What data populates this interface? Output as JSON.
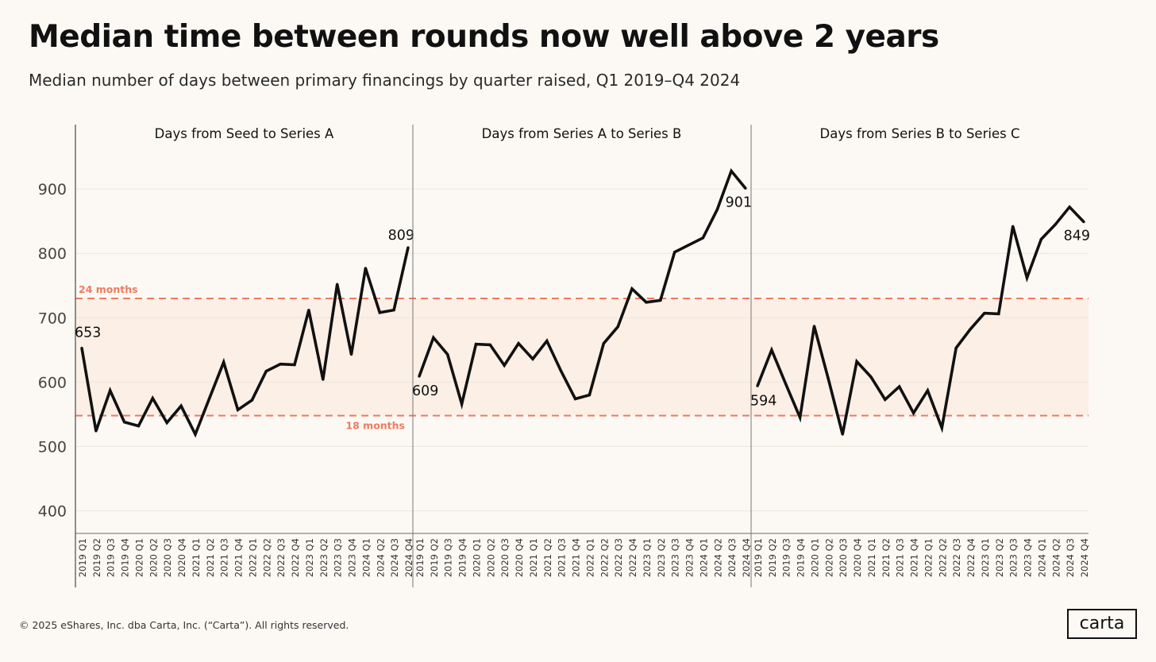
{
  "title": "Median time between rounds now well above 2 years",
  "subtitle": "Median number of days between primary financings by quarter raised, Q1 2019–Q4 2024",
  "footer": "© 2025 eShares, Inc. dba Carta, Inc. (“Carta”). All rights reserved.",
  "logo": "carta",
  "colors": {
    "line": "#111111",
    "reference": "#ef7a5f",
    "band": "#fcefe6",
    "background": "#fcf9f4"
  },
  "chart_data": {
    "type": "line",
    "y_ticks": [
      400,
      500,
      600,
      700,
      800,
      900
    ],
    "ylim": [
      365,
      1000
    ],
    "grid": true,
    "categories": [
      "2019 Q1",
      "2019 Q2",
      "2019 Q3",
      "2019 Q4",
      "2020 Q1",
      "2020 Q2",
      "2020 Q3",
      "2020 Q4",
      "2021 Q1",
      "2021 Q2",
      "2021 Q3",
      "2021 Q4",
      "2022 Q1",
      "2022 Q2",
      "2022 Q3",
      "2022 Q4",
      "2023 Q1",
      "2023 Q2",
      "2023 Q3",
      "2023 Q4",
      "2024 Q1",
      "2024 Q2",
      "2024 Q3",
      "2024 Q4"
    ],
    "reference_lines": [
      {
        "label": "24 months",
        "value": 730
      },
      {
        "label": "18 months",
        "value": 548
      }
    ],
    "panels": [
      {
        "title": "Days from Seed to Series A",
        "values": [
          653,
          524,
          587,
          538,
          532,
          575,
          537,
          563,
          519,
          575,
          631,
          557,
          572,
          617,
          628,
          627,
          712,
          604,
          752,
          643,
          777,
          708,
          712,
          809
        ],
        "annotations": [
          {
            "text": "653",
            "index": 0
          },
          {
            "text": "809",
            "index": 23
          }
        ]
      },
      {
        "title": "Days from Series A to Series B",
        "values": [
          609,
          669,
          643,
          566,
          659,
          658,
          626,
          660,
          636,
          664,
          617,
          574,
          580,
          660,
          686,
          745,
          724,
          727,
          802,
          813,
          824,
          868,
          928,
          901
        ],
        "annotations": [
          {
            "text": "609",
            "index": 0
          },
          {
            "text": "901",
            "index": 23
          }
        ]
      },
      {
        "title": "Days from Series B to Series C",
        "values": [
          594,
          650,
          597,
          545,
          687,
          605,
          519,
          632,
          608,
          573,
          593,
          552,
          587,
          529,
          653,
          682,
          707,
          706,
          842,
          762,
          822,
          845,
          872,
          849
        ],
        "annotations": [
          {
            "text": "594",
            "index": 0
          },
          {
            "text": "849",
            "index": 23
          }
        ]
      }
    ]
  }
}
